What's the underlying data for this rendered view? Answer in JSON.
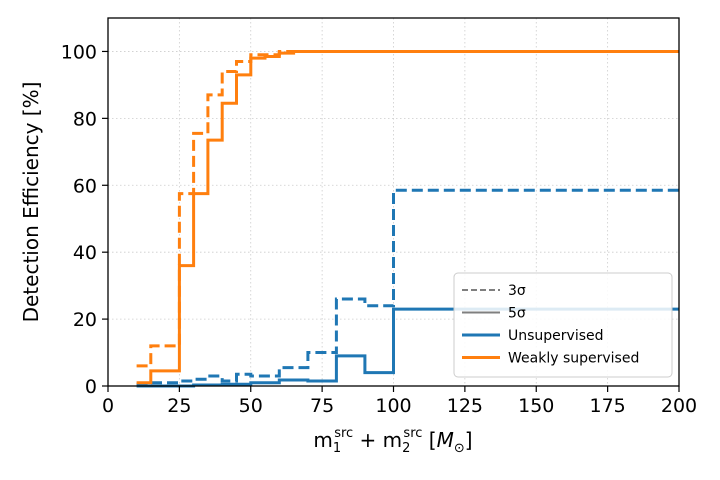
{
  "chart_data": {
    "type": "line",
    "drawstyle": "steps-post",
    "title": "",
    "xlabel": {
      "base1": "m",
      "sub1": "1",
      "sup1": "src",
      "plus": " + ",
      "base2": "m",
      "sub2": "2",
      "sup2": "src",
      "unit_open": " [",
      "unit_symbol": "M",
      "unit_sub": "⊙",
      "unit_close": "]"
    },
    "ylabel": "Detection Efficiency [%]",
    "xlim": [
      0,
      200
    ],
    "ylim": [
      0,
      110
    ],
    "xticks": [
      0,
      25,
      50,
      75,
      100,
      125,
      150,
      175,
      200
    ],
    "yticks": [
      0,
      20,
      40,
      60,
      80,
      100
    ],
    "grid": true,
    "legend": {
      "position": "lower-right",
      "entries": [
        {
          "label": "3σ",
          "color": "#7f7f7f",
          "style": "dashed"
        },
        {
          "label": "5σ",
          "color": "#7f7f7f",
          "style": "solid"
        },
        {
          "label": "Unsupervised",
          "color": "#1f77b4",
          "style": "solid"
        },
        {
          "label": "Weakly supervised",
          "color": "#ff7f0e",
          "style": "solid"
        }
      ]
    },
    "series": [
      {
        "name": "Unsupervised 3σ",
        "color": "#1f77b4",
        "style": "dashed",
        "x": [
          10,
          15,
          20,
          25,
          30,
          35,
          40,
          45,
          50,
          55,
          60,
          65,
          70,
          75,
          80,
          85,
          90,
          95,
          100,
          200
        ],
        "y": [
          0.5,
          1,
          1,
          1.5,
          2,
          3,
          1.5,
          3.5,
          3,
          3,
          5.5,
          5.5,
          10,
          10,
          26,
          26,
          24,
          24,
          58.5,
          58.5
        ]
      },
      {
        "name": "Unsupervised 5σ",
        "color": "#1f77b4",
        "style": "solid",
        "x": [
          10,
          15,
          20,
          25,
          30,
          35,
          40,
          45,
          50,
          55,
          60,
          65,
          70,
          75,
          80,
          85,
          90,
          95,
          100,
          200
        ],
        "y": [
          0,
          0,
          0,
          0,
          0.3,
          0.3,
          0.5,
          0.5,
          1,
          1,
          1.8,
          1.8,
          1.5,
          1.5,
          9,
          9,
          4,
          4,
          23,
          23
        ]
      },
      {
        "name": "Weakly supervised 3σ",
        "color": "#ff7f0e",
        "style": "dashed",
        "x": [
          10,
          15,
          20,
          25,
          30,
          35,
          40,
          45,
          50,
          55,
          60,
          65,
          70,
          75,
          80,
          85,
          90,
          95,
          100,
          200
        ],
        "y": [
          6,
          12,
          12,
          57.5,
          75.5,
          87,
          94,
          97,
          99,
          99,
          100,
          100,
          100,
          100,
          100,
          100,
          100,
          100,
          100,
          100
        ]
      },
      {
        "name": "Weakly supervised 5σ",
        "color": "#ff7f0e",
        "style": "solid",
        "x": [
          10,
          15,
          20,
          25,
          30,
          35,
          40,
          45,
          50,
          55,
          60,
          65,
          70,
          75,
          80,
          85,
          90,
          95,
          100,
          200
        ],
        "y": [
          1,
          4.5,
          4.5,
          36,
          57.5,
          73.5,
          84.5,
          93,
          98,
          98.5,
          99.5,
          100,
          100,
          100,
          100,
          100,
          100,
          100,
          100,
          100
        ]
      }
    ]
  }
}
